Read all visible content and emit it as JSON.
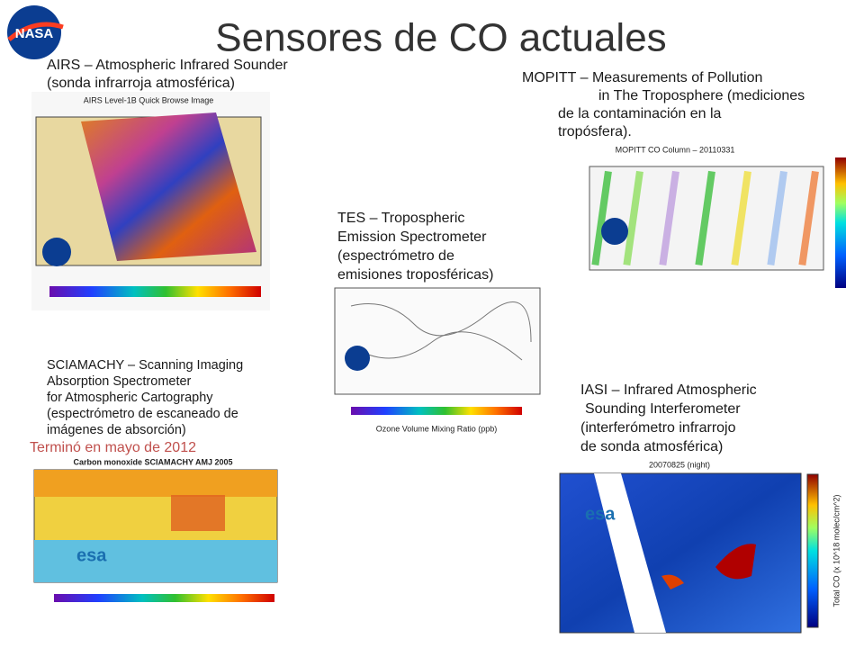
{
  "header": {
    "title": "Sensores de CO actuales",
    "logo": "NASA"
  },
  "sensors": [
    {
      "lines": [
        "AIRS – Atmospheric Infrared Sounder",
        "(sonda infrarroja atmosférica)"
      ],
      "image": {
        "caption": "AIRS Level-1B Quick Browse Image"
      }
    },
    {
      "lines": [
        "MOPITT – Measurements of Pollution",
        "in The Troposphere (mediciones",
        "de la contaminación en la",
        "tropósfera)."
      ],
      "image": {
        "caption": "MOPITT CO Column – 20110331"
      }
    },
    {
      "lines": [
        "TES – Tropospheric",
        "Emission Spectrometer",
        "(espectrómetro de",
        "emisiones troposféricas)"
      ],
      "image": {
        "caption": "Ozone Volume Mixing Ratio (ppb)"
      }
    },
    {
      "lines": [
        "SCIAMACHY – Scanning Imaging",
        "Absorption Spectrometer",
        "for Atmospheric Cartography",
        "(espectrómetro de escaneado de",
        "imágenes de absorción)"
      ],
      "note": "Terminó en mayo de 2012",
      "image": {
        "caption": "Carbon monoxide SCIAMACHY AMJ 2005"
      }
    },
    {
      "lines": [
        "IASI – Infrared Atmospheric",
        "Sounding Interferometer",
        "(interferómetro infrarrojo",
        "de sonda atmosférica)"
      ],
      "image": {
        "caption": "20070825 (night)",
        "axis": "Total CO (x 10^18 molec/cm^2)"
      }
    }
  ]
}
